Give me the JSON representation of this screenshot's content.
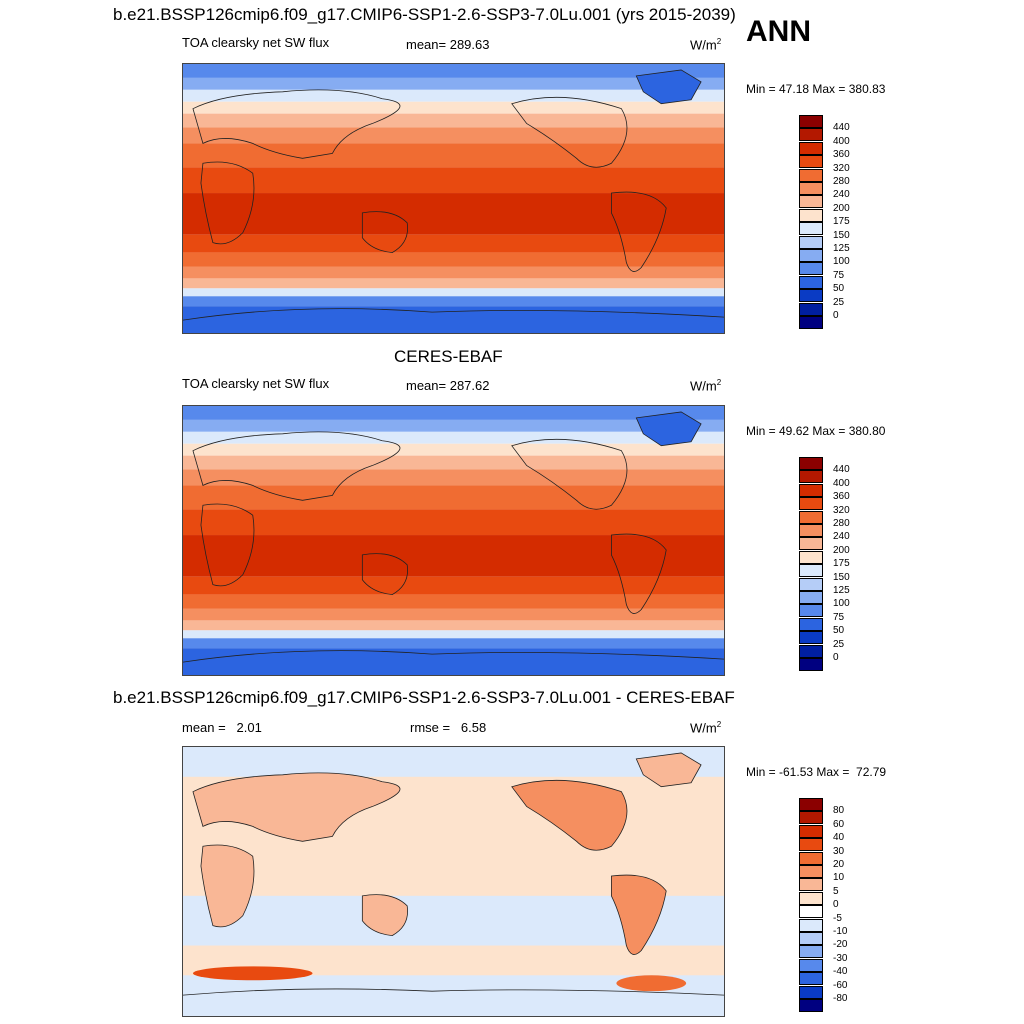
{
  "season": "ANN",
  "panels": [
    {
      "title": "b.e21.BSSP126cmip6.f09_g17.CMIP6-SSP1-2.6-SSP3-7.0Lu.001 (yrs 2015-2039)",
      "left_label": "TOA clearsky net SW flux",
      "center_label": "mean= 289.63",
      "units": "W/m",
      "units_sup": "2",
      "minmax": "Min =  47.18 Max = 380.83",
      "colorbar": {
        "labels": [
          "440",
          "400",
          "360",
          "320",
          "280",
          "240",
          "200",
          "175",
          "150",
          "125",
          "100",
          "75",
          "50",
          "25",
          "0"
        ],
        "colors": [
          "#8b0000",
          "#b31800",
          "#d42c00",
          "#e84a10",
          "#f06c32",
          "#f58f60",
          "#f9b796",
          "#fde3cd",
          "#dbe9fb",
          "#b5cdf7",
          "#86acf2",
          "#5789ec",
          "#2c64e0",
          "#0a3bc4",
          "#001fa0",
          "#000080"
        ]
      }
    },
    {
      "title": "CERES-EBAF",
      "left_label": "TOA clearsky net SW flux",
      "center_label": "mean= 287.62",
      "units": "W/m",
      "units_sup": "2",
      "minmax": "Min =  49.62 Max = 380.80",
      "colorbar": {
        "labels": [
          "440",
          "400",
          "360",
          "320",
          "280",
          "240",
          "200",
          "175",
          "150",
          "125",
          "100",
          "75",
          "50",
          "25",
          "0"
        ],
        "colors": [
          "#8b0000",
          "#b31800",
          "#d42c00",
          "#e84a10",
          "#f06c32",
          "#f58f60",
          "#f9b796",
          "#fde3cd",
          "#dbe9fb",
          "#b5cdf7",
          "#86acf2",
          "#5789ec",
          "#2c64e0",
          "#0a3bc4",
          "#001fa0",
          "#000080"
        ]
      }
    },
    {
      "title": "b.e21.BSSP126cmip6.f09_g17.CMIP6-SSP1-2.6-SSP3-7.0Lu.001 - CERES-EBAF",
      "left_label": "mean =   2.01",
      "center_label": "rmse =   6.58",
      "units": "W/m",
      "units_sup": "2",
      "minmax": "Min = -61.53 Max =  72.79",
      "colorbar": {
        "labels": [
          "80",
          "60",
          "40",
          "30",
          "20",
          "10",
          "5",
          "0",
          "-5",
          "-10",
          "-20",
          "-30",
          "-40",
          "-60",
          "-80"
        ],
        "colors": [
          "#8b0000",
          "#b31800",
          "#d42c00",
          "#e84a10",
          "#f06c32",
          "#f58f60",
          "#f9b796",
          "#fde3cd",
          "#ffffff",
          "#dbe9fb",
          "#b5cdf7",
          "#86acf2",
          "#5789ec",
          "#2c64e0",
          "#0a3bc4",
          "#000080"
        ]
      }
    }
  ]
}
